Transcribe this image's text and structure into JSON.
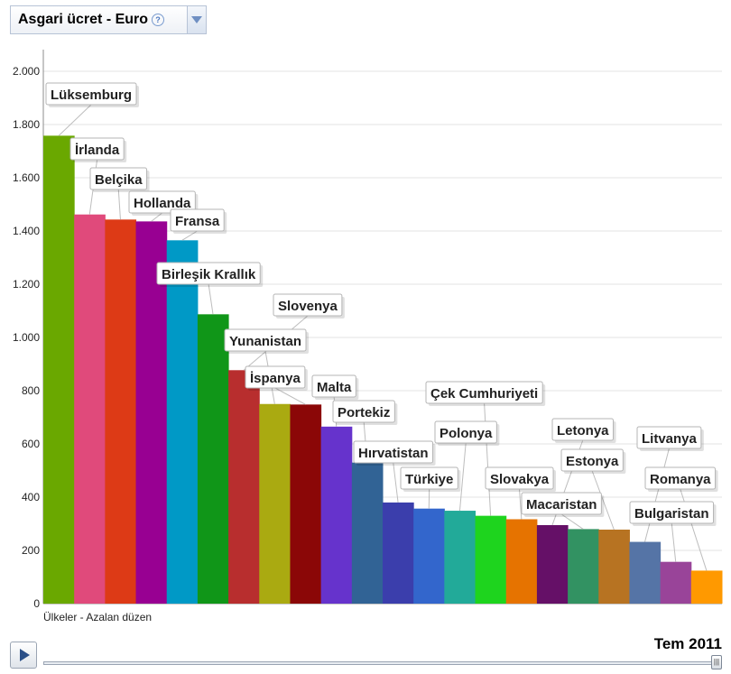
{
  "header": {
    "metric_label": "Asgari ücret - Euro",
    "help_icon": "question-circle-icon",
    "dropdown_icon": "chevron-down-icon"
  },
  "footer": {
    "sort_label": "Ülkeler - Azalan düzen",
    "time_label": "Tem 2011",
    "play_icon": "play-icon"
  },
  "chart_data": {
    "type": "bar",
    "title": "",
    "xlabel": "Ülkeler - Azalan düzen",
    "ylabel": "",
    "ylim": [
      0,
      2000
    ],
    "yticks": [
      0,
      200,
      400,
      600,
      800,
      1000,
      1200,
      1400,
      1600,
      1800,
      2000
    ],
    "ytick_labels": [
      "0",
      "200",
      "400",
      "600",
      "800",
      "1.000",
      "1.200",
      "1.400",
      "1.600",
      "1.800",
      "2.000"
    ],
    "grid": true,
    "categories": [
      "Lüksemburg",
      "İrlanda",
      "Belçika",
      "Hollanda",
      "Fransa",
      "Birleşik Krallık",
      "Slovenya",
      "Yunanistan",
      "İspanya",
      "Malta",
      "Portekiz",
      "Hırvatistan",
      "Türkiye",
      "Polonya",
      "Çek Cumhuriyeti",
      "Slovakya",
      "Letonya",
      "Macaristan",
      "Estonya",
      "Litvanya",
      "Bulgaristan",
      "Romanya"
    ],
    "values": [
      1758,
      1462,
      1443,
      1436,
      1365,
      1087,
      877,
      750,
      748,
      665,
      530,
      380,
      357,
      349,
      330,
      317,
      295,
      280,
      278,
      232,
      157,
      124
    ],
    "colors": [
      "#6aa800",
      "#e04a7b",
      "#dd3a16",
      "#980092",
      "#0099c6",
      "#109618",
      "#b82e2e",
      "#aaaa11",
      "#8b0707",
      "#6633cc",
      "#316395",
      "#3b3eac",
      "#3366cc",
      "#22aa99",
      "#1ed41e",
      "#e67300",
      "#651067",
      "#329262",
      "#b77322",
      "#5574a6",
      "#994499",
      "#ff9900"
    ]
  }
}
